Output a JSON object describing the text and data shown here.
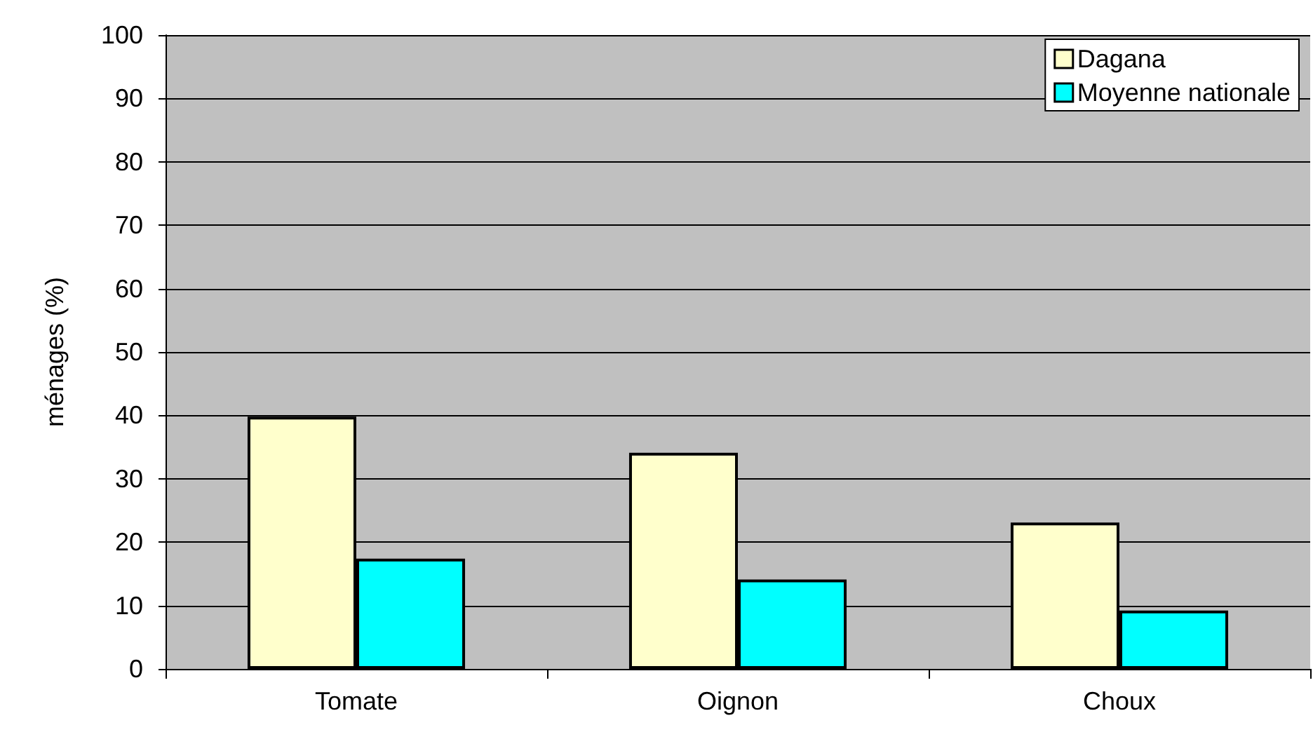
{
  "chart_data": {
    "type": "bar",
    "ylabel": "ménages (%)",
    "categories": [
      "Tomate",
      "Oignon",
      "Choux"
    ],
    "series": [
      {
        "name": "Dagana",
        "color": "#ffffcc",
        "values": [
          39.8,
          34.1,
          23.1
        ]
      },
      {
        "name": "Moyenne nationale",
        "color": "#00ffff",
        "values": [
          17.4,
          14.1,
          9.2
        ]
      }
    ],
    "ylim": [
      0,
      100
    ],
    "yticks": [
      0,
      10,
      20,
      30,
      40,
      50,
      60,
      70,
      80,
      90,
      100
    ],
    "grid": "y",
    "legend": "top right"
  }
}
